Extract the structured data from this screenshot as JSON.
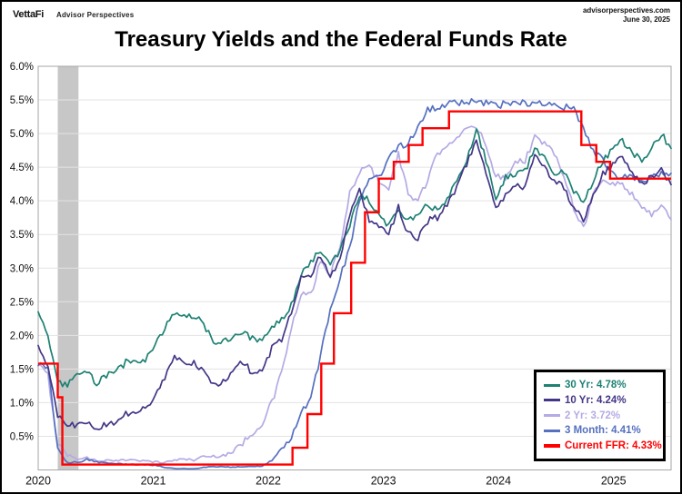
{
  "header": {
    "logo": "VettaFi",
    "tagline": "Advisor Perspectives",
    "site": "advisorperspectives.com",
    "date": "June 30, 2025"
  },
  "chart_data": {
    "type": "line",
    "title": "Treasury Yields and the Federal Funds Rate",
    "xlabel": "",
    "ylabel": "",
    "xlim": [
      2020,
      2025.5
    ],
    "ylim": [
      0,
      6
    ],
    "grid": true,
    "legend_position": "bottom-right",
    "yticks": [
      "6.0%",
      "5.5%",
      "5.0%",
      "4.5%",
      "4.0%",
      "3.5%",
      "3.0%",
      "2.5%",
      "2.0%",
      "1.5%",
      "1.0%",
      "0.5%"
    ],
    "ytick_values": [
      6.0,
      5.5,
      5.0,
      4.5,
      4.0,
      3.5,
      3.0,
      2.5,
      2.0,
      1.5,
      1.0,
      0.5
    ],
    "xticks": [
      "2020",
      "2021",
      "2022",
      "2023",
      "2024",
      "2025"
    ],
    "xtick_values": [
      2020,
      2021,
      2022,
      2023,
      2024,
      2025
    ],
    "recession_band": {
      "from": 2020.17,
      "to": 2020.35,
      "color": "#c7c7c7"
    },
    "series_x_start": 2020.0,
    "series_x_end": 2025.5,
    "series": [
      {
        "name": "30-yr",
        "label": "30 Yr: 4.78%",
        "current": 4.78,
        "color": "#1d8173",
        "values": [
          2.35,
          2.0,
          1.3,
          1.25,
          1.4,
          1.45,
          1.3,
          1.4,
          1.45,
          1.6,
          1.6,
          1.65,
          1.85,
          2.1,
          2.35,
          2.3,
          2.3,
          2.15,
          1.9,
          1.9,
          2.0,
          2.05,
          1.95,
          1.9,
          2.1,
          2.25,
          2.45,
          2.9,
          3.1,
          3.25,
          3.05,
          3.25,
          3.65,
          4.1,
          4.0,
          3.75,
          3.65,
          3.9,
          3.7,
          3.75,
          3.95,
          3.85,
          4.0,
          4.3,
          4.6,
          5.05,
          4.6,
          4.05,
          4.35,
          4.4,
          4.45,
          4.75,
          4.65,
          4.4,
          4.45,
          4.15,
          3.95,
          4.3,
          4.6,
          4.75,
          4.9,
          4.7,
          4.6,
          4.8,
          5.0,
          4.78
        ]
      },
      {
        "name": "10-yr",
        "label": "10 Yr: 4.24%",
        "current": 4.24,
        "color": "#443687",
        "values": [
          1.85,
          1.5,
          0.8,
          0.65,
          0.68,
          0.7,
          0.6,
          0.68,
          0.68,
          0.85,
          0.85,
          0.92,
          1.1,
          1.35,
          1.7,
          1.6,
          1.6,
          1.45,
          1.25,
          1.3,
          1.5,
          1.6,
          1.45,
          1.5,
          1.8,
          1.95,
          2.35,
          2.9,
          2.85,
          3.2,
          2.9,
          3.1,
          3.8,
          4.2,
          3.7,
          3.6,
          3.5,
          3.9,
          3.5,
          3.45,
          3.7,
          3.75,
          3.95,
          4.2,
          4.55,
          4.9,
          4.4,
          3.9,
          4.1,
          4.25,
          4.2,
          4.65,
          4.5,
          4.3,
          4.2,
          3.9,
          3.7,
          4.1,
          4.4,
          4.55,
          4.65,
          4.45,
          4.25,
          4.35,
          4.45,
          4.24
        ]
      },
      {
        "name": "2-yr",
        "label": "2 Yr: 3.72%",
        "current": 3.72,
        "color": "#b5aae4",
        "values": [
          1.57,
          1.4,
          0.4,
          0.22,
          0.17,
          0.18,
          0.14,
          0.14,
          0.13,
          0.15,
          0.16,
          0.13,
          0.12,
          0.11,
          0.15,
          0.16,
          0.15,
          0.2,
          0.2,
          0.22,
          0.27,
          0.4,
          0.55,
          0.7,
          1.0,
          1.45,
          2.1,
          2.6,
          2.6,
          3.1,
          2.9,
          3.3,
          4.1,
          4.45,
          4.5,
          4.3,
          4.2,
          4.7,
          4.1,
          4.0,
          4.3,
          4.7,
          4.85,
          4.95,
          5.05,
          5.1,
          4.85,
          4.35,
          4.35,
          4.6,
          4.6,
          4.95,
          4.85,
          4.7,
          4.4,
          3.9,
          3.6,
          4.1,
          4.3,
          4.25,
          4.25,
          4.1,
          3.9,
          3.8,
          3.95,
          3.72
        ]
      },
      {
        "name": "3-month",
        "label": "3 Month: 4.41%",
        "current": 4.41,
        "color": "#5570bf",
        "values": [
          1.55,
          1.55,
          0.3,
          0.1,
          0.12,
          0.15,
          0.12,
          0.1,
          0.1,
          0.09,
          0.08,
          0.08,
          0.07,
          0.04,
          0.02,
          0.02,
          0.01,
          0.04,
          0.05,
          0.05,
          0.04,
          0.05,
          0.05,
          0.06,
          0.15,
          0.33,
          0.5,
          0.85,
          1.05,
          1.7,
          2.4,
          2.85,
          3.3,
          4.0,
          4.3,
          4.35,
          4.65,
          4.8,
          4.85,
          5.1,
          5.35,
          5.4,
          5.45,
          5.45,
          5.45,
          5.5,
          5.45,
          5.4,
          5.45,
          5.45,
          5.45,
          5.45,
          5.45,
          5.45,
          5.4,
          5.35,
          5.1,
          4.75,
          4.6,
          4.4,
          4.35,
          4.35,
          4.3,
          4.35,
          4.4,
          4.41
        ]
      },
      {
        "name": "current-ffr",
        "label": "Current FFR: 4.33%",
        "current": 4.33,
        "color": "#ff0000",
        "type": "step",
        "steps": [
          [
            2020.0,
            1.58
          ],
          [
            2020.17,
            1.08
          ],
          [
            2020.21,
            0.08
          ],
          [
            2022.21,
            0.33
          ],
          [
            2022.34,
            0.83
          ],
          [
            2022.46,
            1.58
          ],
          [
            2022.57,
            2.33
          ],
          [
            2022.72,
            3.08
          ],
          [
            2022.84,
            3.83
          ],
          [
            2022.96,
            4.33
          ],
          [
            2023.09,
            4.58
          ],
          [
            2023.22,
            4.83
          ],
          [
            2023.34,
            5.08
          ],
          [
            2023.57,
            5.33
          ],
          [
            2024.72,
            4.83
          ],
          [
            2024.85,
            4.58
          ],
          [
            2024.97,
            4.33
          ],
          [
            2025.5,
            4.33
          ]
        ]
      }
    ],
    "style": {
      "grid_color": "#e3e3e3",
      "plot_border_color": "#a6a6a6",
      "jitter": 0.05
    }
  }
}
